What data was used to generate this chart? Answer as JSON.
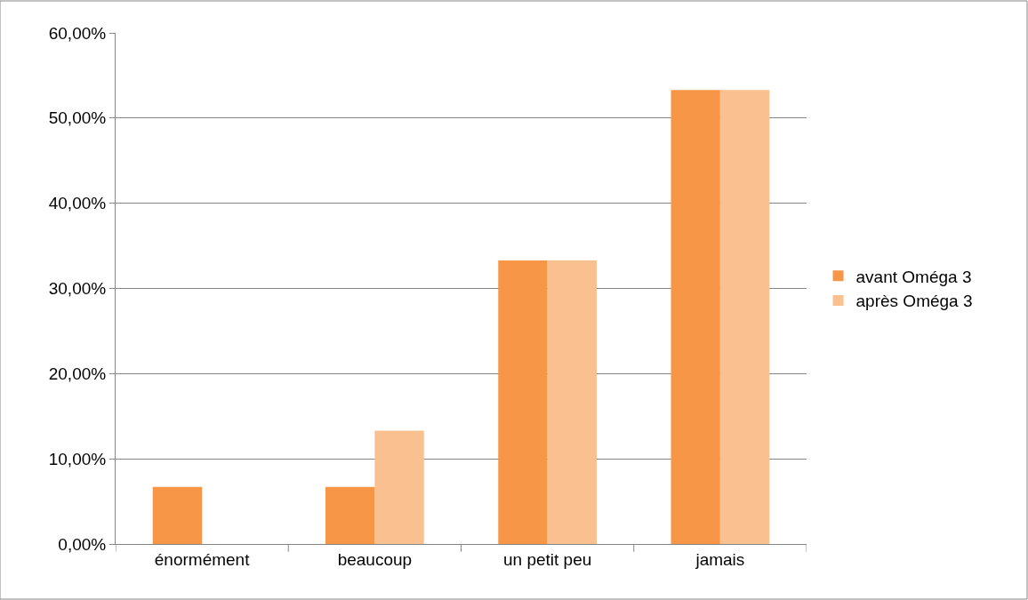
{
  "chart_data": {
    "type": "bar",
    "categories": [
      "énormément",
      "beaucoup",
      "un petit peu",
      "jamais"
    ],
    "series": [
      {
        "name": "avant Oméga 3",
        "color": "#f79646",
        "values": [
          6.7,
          6.7,
          33.3,
          53.3
        ]
      },
      {
        "name": "après Oméga 3",
        "color": "#fac090",
        "values": [
          0,
          13.3,
          33.3,
          53.3
        ]
      }
    ],
    "ylim": [
      0,
      60
    ],
    "yticks": [
      {
        "value": 0,
        "label": "0,00%"
      },
      {
        "value": 10,
        "label": "10,00%"
      },
      {
        "value": 20,
        "label": "20,00%"
      },
      {
        "value": 30,
        "label": "30,00%"
      },
      {
        "value": 40,
        "label": "40,00%"
      },
      {
        "value": 50,
        "label": "50,00%"
      },
      {
        "value": 60,
        "label": "60,00%"
      }
    ],
    "grid": "y",
    "legend": "right"
  }
}
